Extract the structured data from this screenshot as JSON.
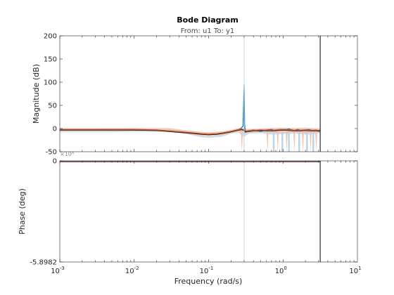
{
  "chart_data": {
    "type": "line",
    "title": "Bode Diagram",
    "subtitle": "From: u1  To: y1",
    "xlabel": "Frequency  (rad/s)",
    "xscale": "log",
    "xlim": [
      0.001,
      10
    ],
    "x_tick_labels": [
      "10^-3",
      "10^-2",
      "10^-1",
      "10^0",
      "10^1"
    ],
    "marker_frequency": 3.16,
    "resonance_frequency": 0.3,
    "colors": {
      "response": "#0072bd",
      "estimate": "#d95319",
      "band_blue": "#bcd4e6",
      "band_red": "#f4c2ae",
      "marker": "#000000",
      "axes": "#262626"
    },
    "magnitude": {
      "ylabel": "Magnitude (dB)",
      "ylim": [
        -50,
        200
      ],
      "yticks": [
        -50,
        0,
        50,
        100,
        150,
        200
      ],
      "response": {
        "x": [
          0.001,
          0.002,
          0.005,
          0.01,
          0.02,
          0.03,
          0.05,
          0.08,
          0.1,
          0.13,
          0.16,
          0.2,
          0.24,
          0.27,
          0.29,
          0.3,
          0.305,
          0.31,
          0.33,
          0.4,
          0.5,
          0.6,
          0.7,
          0.8,
          0.9,
          1.0,
          1.2,
          1.4,
          1.6,
          1.8,
          2.0,
          2.2,
          2.5,
          2.8,
          3.0,
          3.16
        ],
        "y": [
          -3,
          -3,
          -3,
          -3,
          -4,
          -5,
          -8,
          -11,
          -13,
          -12,
          -10,
          -7,
          -4,
          0,
          5,
          95,
          10,
          -8,
          -5,
          -3,
          -6,
          -3,
          -2,
          -5,
          -2,
          -3,
          -1,
          -4,
          -2,
          -5,
          -3,
          -2,
          -4,
          -3,
          -6,
          -5
        ]
      },
      "estimate": {
        "x": [
          0.001,
          0.005,
          0.01,
          0.02,
          0.05,
          0.08,
          0.1,
          0.13,
          0.16,
          0.2,
          0.24,
          0.28,
          0.3,
          0.32,
          0.4,
          0.5,
          0.7,
          1.0,
          1.5,
          2.0,
          2.5,
          3.16
        ],
        "y": [
          -2,
          -2,
          -2,
          -3,
          -8,
          -11,
          -12,
          -11,
          -9,
          -6,
          -3,
          -1,
          -3,
          -6,
          -4,
          -3,
          -4,
          -2,
          -4,
          -3,
          -4,
          -4
        ]
      },
      "uncertainty_blue": {
        "x": [
          0.001,
          0.003,
          0.004,
          0.01,
          0.03,
          0.05,
          0.08,
          0.1,
          0.15,
          0.2,
          0.25,
          0.3,
          0.35,
          0.5,
          0.7,
          1.0,
          1.5,
          2.0,
          2.5,
          3.16
        ],
        "upper": [
          -1,
          -1,
          0,
          1,
          0,
          -4,
          -8,
          -9,
          -7,
          -3,
          0,
          0,
          -1,
          -1,
          1,
          1,
          0,
          1,
          0,
          -1
        ],
        "lower": [
          -8,
          -8,
          -8,
          -7,
          -7,
          -12,
          -19,
          -20,
          -18,
          -11,
          -9,
          -18,
          -11,
          -10,
          -13,
          -12,
          -11,
          -13,
          -12,
          -10
        ]
      },
      "uncertainty_red": {
        "x": [
          0.001,
          0.01,
          0.03,
          0.05,
          0.08,
          0.1,
          0.15,
          0.2,
          0.25,
          0.3,
          0.35,
          0.5,
          0.7,
          1.0,
          1.5,
          2.0,
          2.5,
          3.16
        ],
        "upper": [
          1,
          1,
          1,
          -4,
          -7,
          -8,
          -6,
          -3,
          1,
          0,
          -1,
          0,
          1,
          2,
          1,
          2,
          1,
          0
        ],
        "lower": [
          -5,
          -5,
          -6,
          -11,
          -15,
          -16,
          -14,
          -10,
          -7,
          -9,
          -9,
          -8,
          -10,
          -8,
          -9,
          -10,
          -9,
          -8
        ]
      },
      "dips_blue": [
        0.75,
        0.98,
        1.2,
        1.65,
        2.1,
        2.55
      ],
      "dips_red": [
        0.28,
        0.62,
        0.85,
        1.12,
        1.42,
        1.85,
        2.35,
        2.8
      ]
    },
    "phase": {
      "ylabel": "Phase (deg)",
      "ylim": [
        -589820000.0,
        0
      ],
      "ytick_labels": [
        "0",
        "-5.8982"
      ],
      "exponent_label": "×10⁸",
      "curve_value": 0
    }
  }
}
